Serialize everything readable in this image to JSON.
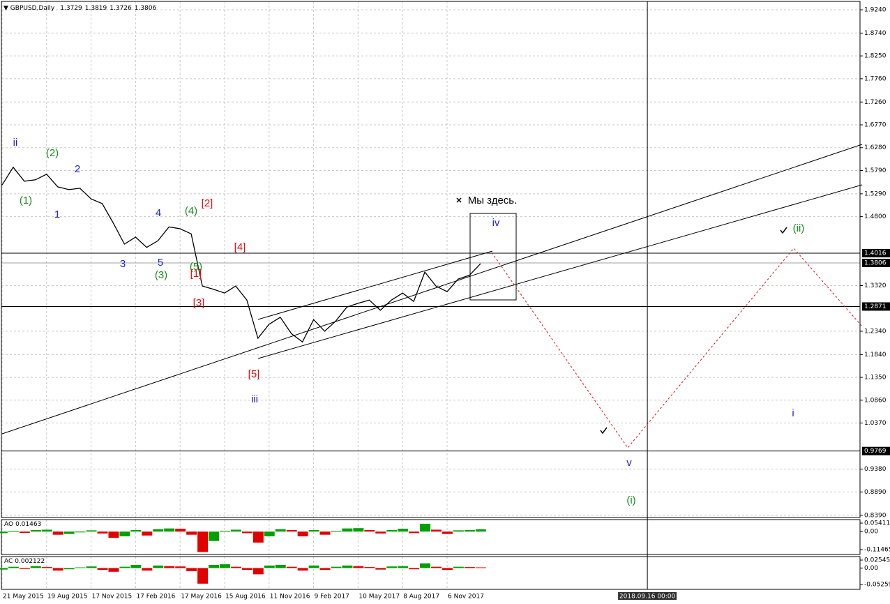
{
  "chart_data": {
    "type": "line",
    "title": "GBPUSD,Daily",
    "ohlc": [
      1.3729,
      1.3819,
      1.3726,
      1.3806
    ],
    "color": "#000000",
    "grid": true,
    "crosshair": "2018.09.16 00:00",
    "categories": [
      "21 May 2015",
      null,
      null,
      null,
      "19 Aug 2015",
      null,
      null,
      null,
      "17 Nov 2015",
      null,
      null,
      null,
      "17 Feb 2016",
      null,
      null,
      null,
      "17 May 2016",
      null,
      null,
      null,
      "15 Aug 2016",
      null,
      null,
      null,
      "11 Nov 2016",
      null,
      null,
      null,
      "9 Feb 2017",
      null,
      null,
      null,
      "10 May 2017",
      null,
      null,
      null,
      "8 Aug 2017",
      null,
      null,
      null,
      "6 Nov 2017",
      null,
      null,
      null,
      null,
      null,
      null,
      null,
      null,
      null,
      null,
      null,
      null,
      null,
      null,
      null,
      null,
      null,
      "2018.09.16 00:00",
      null,
      null,
      null,
      null,
      null,
      null,
      null,
      null,
      null,
      null,
      null,
      null,
      null,
      null,
      null,
      null,
      null,
      null,
      null
    ],
    "values": [
      1.548,
      1.586,
      1.556,
      1.559,
      1.571,
      1.544,
      1.538,
      1.541,
      1.518,
      1.508,
      1.466,
      1.421,
      1.436,
      1.414,
      1.428,
      1.458,
      1.454,
      1.443,
      1.331,
      1.324,
      1.316,
      1.331,
      1.301,
      1.219,
      1.249,
      1.264,
      1.229,
      1.211,
      1.259,
      1.234,
      1.256,
      1.286,
      1.294,
      1.301,
      1.279,
      1.301,
      1.316,
      1.298,
      1.361,
      1.331,
      1.319,
      1.346,
      1.354,
      1.379,
      null,
      null,
      null,
      null,
      null,
      null,
      null,
      null,
      null,
      null,
      null,
      null,
      null,
      null,
      null,
      null,
      null,
      null,
      null,
      null,
      null,
      null,
      null,
      null,
      null,
      null,
      null,
      null,
      null,
      null,
      null,
      null,
      null,
      null
    ],
    "ylim": [
      0.8342,
      1.9405
    ],
    "yticks": [
      {
        "value": 1.924,
        "label": "1.9240"
      },
      {
        "value": 1.874,
        "label": "1.8740"
      },
      {
        "value": 1.825,
        "label": "1.8250"
      },
      {
        "value": 1.776,
        "label": "1.7760"
      },
      {
        "value": 1.726,
        "label": "1.7260"
      },
      {
        "value": 1.677,
        "label": "1.6770"
      },
      {
        "value": 1.628,
        "label": "1.6280"
      },
      {
        "value": 1.579,
        "label": "1.5790"
      },
      {
        "value": 1.529,
        "label": "1.5290"
      },
      {
        "value": 1.48,
        "label": "1.4800"
      },
      {
        "value": 1.332,
        "label": "1.3320"
      },
      {
        "value": 1.234,
        "label": "1.2340"
      },
      {
        "value": 1.184,
        "label": "1.1840"
      },
      {
        "value": 1.135,
        "label": "1.1350"
      },
      {
        "value": 1.086,
        "label": "1.0860"
      },
      {
        "value": 1.037,
        "label": "1.0370"
      },
      {
        "value": 0.938,
        "label": "0.9380"
      },
      {
        "value": 0.889,
        "label": "0.8890"
      },
      {
        "value": 0.839,
        "label": "0.8390"
      }
    ],
    "levels": [
      {
        "value": 1.4016,
        "color": "#000000"
      },
      {
        "value": 1.3806,
        "color": "#a0a0a0"
      },
      {
        "value": 1.2871,
        "color": "#000000"
      },
      {
        "value": 0.9769,
        "color": "#000000"
      }
    ],
    "annotations": [
      {
        "text": "ii",
        "color": "#1f1fd6"
      },
      {
        "text": "(2)",
        "color": "#1a8c1a"
      },
      {
        "text": "2",
        "color": "#1f1fd6"
      },
      {
        "text": "(1)",
        "color": "#1a8c1a"
      },
      {
        "text": "1",
        "color": "#1f1fd6"
      },
      {
        "text": "4",
        "color": "#1f1fd6"
      },
      {
        "text": "(4)",
        "color": "#1a8c1a"
      },
      {
        "text": "[2]",
        "color": "#e01010"
      },
      {
        "text": "3",
        "color": "#1f1fd6"
      },
      {
        "text": "5",
        "color": "#1f1fd6"
      },
      {
        "text": "(5)",
        "color": "#1a8c1a"
      },
      {
        "text": "[1]",
        "color": "#e01010"
      },
      {
        "text": "(3)",
        "color": "#1a8c1a"
      },
      {
        "text": "[4]",
        "color": "#e01010"
      },
      {
        "text": "[3]",
        "color": "#e01010"
      },
      {
        "text": "[5]",
        "color": "#e01010"
      },
      {
        "text": "iii",
        "color": "#1f1fd6"
      },
      {
        "text": "iv",
        "color": "#1f1fd6"
      },
      {
        "text": "Мы здесь.",
        "color": "#000000"
      },
      {
        "text": "v",
        "color": "#1f1fd6"
      },
      {
        "text": "(i)",
        "color": "#1a8c1a"
      },
      {
        "text": "(ii)",
        "color": "#1a8c1a"
      },
      {
        "text": "i",
        "color": "#1f1fd6"
      }
    ],
    "indicators": [
      {
        "name": "AO",
        "current": 0.01463,
        "up_color": "#00a000",
        "down_color": "#e00000",
        "ylim": [
          -0.1458,
          0.0763
        ],
        "yticks": [
          0.05411,
          {
            "value": 0,
            "label": "0.00"
          },
          -0.11465
        ],
        "values": [
          -0.01,
          0.005,
          -0.008,
          0.01,
          0.012,
          -0.02,
          -0.015,
          -0.005,
          0.008,
          -0.012,
          -0.04,
          -0.03,
          0.01,
          -0.025,
          0.015,
          0.02,
          0.018,
          -0.02,
          -0.13,
          -0.06,
          0.005,
          0.012,
          -0.01,
          -0.07,
          -0.03,
          0.015,
          0.01,
          -0.03,
          0.01,
          -0.02,
          0.005,
          0.02,
          0.022,
          0.01,
          -0.012,
          0.01,
          0.018,
          -0.01,
          0.05,
          0.012,
          -0.015,
          0.008,
          0.01,
          0.01463,
          null,
          null,
          null,
          null,
          null,
          null,
          null,
          null,
          null,
          null,
          null,
          null,
          null,
          null,
          null,
          null,
          null,
          null,
          null,
          null,
          null,
          null,
          null,
          null,
          null,
          null,
          null,
          null,
          null,
          null,
          null,
          null,
          null,
          null
        ]
      },
      {
        "name": "AC",
        "current": 0.002122,
        "up_color": "#00a000",
        "down_color": "#e00000",
        "ylim": [
          -0.0682,
          0.0366
        ],
        "yticks": [
          0.025453,
          {
            "value": 0,
            "label": "0.00"
          },
          -0.05259
        ],
        "values": [
          -0.005,
          0.004,
          -0.003,
          0.006,
          0.003,
          -0.008,
          -0.004,
          0.002,
          0.005,
          -0.006,
          -0.012,
          0.004,
          0.01,
          -0.008,
          0.008,
          0.006,
          0.005,
          -0.01,
          -0.05,
          0.01,
          0.012,
          0.004,
          -0.006,
          -0.02,
          0.008,
          0.01,
          0.004,
          -0.008,
          0.008,
          -0.006,
          0.004,
          0.008,
          0.006,
          0.003,
          -0.005,
          0.005,
          0.006,
          -0.004,
          0.015,
          0.004,
          -0.006,
          0.004,
          0.003,
          0.002122,
          null,
          null,
          null,
          null,
          null,
          null,
          null,
          null,
          null,
          null,
          null,
          null,
          null,
          null,
          null,
          null,
          null,
          null,
          null,
          null,
          null,
          null,
          null,
          null,
          null,
          null,
          null,
          null,
          null,
          null,
          null,
          null,
          null,
          null
        ]
      }
    ]
  }
}
